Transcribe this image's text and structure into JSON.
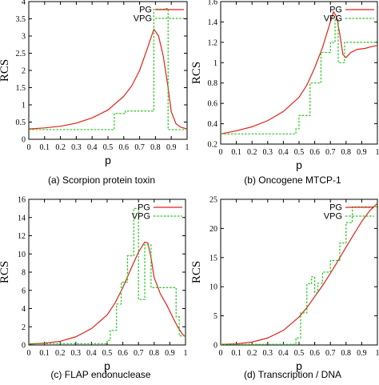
{
  "legend": {
    "pg": "PG",
    "vpg": "VPG"
  },
  "colors": {
    "pg": "#e0221b",
    "vpg": "#22c51c"
  },
  "chart_data": [
    {
      "type": "line",
      "caption": "(a) Scorpion protein toxin",
      "xlabel": "p",
      "ylabel": "RCS",
      "xlim": [
        0,
        1
      ],
      "ylim": [
        0,
        4
      ],
      "yticks": [
        "0",
        "0.5",
        "1",
        "1.5",
        "2",
        "2.5",
        "3",
        "3.5",
        "4"
      ],
      "xticks": [
        "0",
        "0.1",
        "0.2",
        "0.3",
        "0.4",
        "0.5",
        "0.6",
        "0.7",
        "0.8",
        "0.9",
        "1"
      ],
      "series": [
        {
          "name": "PG",
          "points": [
            [
              0,
              0.3
            ],
            [
              0.1,
              0.33
            ],
            [
              0.2,
              0.38
            ],
            [
              0.3,
              0.47
            ],
            [
              0.4,
              0.62
            ],
            [
              0.5,
              0.85
            ],
            [
              0.6,
              1.25
            ],
            [
              0.65,
              1.55
            ],
            [
              0.7,
              2.0
            ],
            [
              0.75,
              2.65
            ],
            [
              0.79,
              3.2
            ],
            [
              0.82,
              3.0
            ],
            [
              0.85,
              2.4
            ],
            [
              0.88,
              1.5
            ],
            [
              0.9,
              0.8
            ],
            [
              0.93,
              0.45
            ],
            [
              0.96,
              0.35
            ],
            [
              1.0,
              0.3
            ]
          ]
        },
        {
          "name": "VPG",
          "points": [
            [
              0,
              0.28
            ],
            [
              0.54,
              0.28
            ],
            [
              0.54,
              0.75
            ],
            [
              0.61,
              0.75
            ],
            [
              0.61,
              0.82
            ],
            [
              0.79,
              0.82
            ],
            [
              0.79,
              3.78
            ],
            [
              0.86,
              3.78
            ],
            [
              0.86,
              3.8
            ],
            [
              0.88,
              3.8
            ],
            [
              0.88,
              0.28
            ],
            [
              1.0,
              0.28
            ]
          ]
        }
      ]
    },
    {
      "type": "line",
      "caption": "(b) Oncogene MTCP-1",
      "xlabel": "p",
      "ylabel": "RCS",
      "xlim": [
        0,
        1
      ],
      "ylim": [
        0.2,
        1.6
      ],
      "yticks": [
        "0.2",
        "0.4",
        "0.6",
        "0.8",
        "1",
        "1.2",
        "1.4",
        "1.6"
      ],
      "xticks": [
        "0",
        "0.1",
        "0.2",
        "0.3",
        "0.4",
        "0.5",
        "0.6",
        "0.7",
        "0.8",
        "0.9",
        "1"
      ],
      "series": [
        {
          "name": "PG",
          "points": [
            [
              0,
              0.3
            ],
            [
              0.1,
              0.33
            ],
            [
              0.2,
              0.37
            ],
            [
              0.3,
              0.43
            ],
            [
              0.4,
              0.52
            ],
            [
              0.5,
              0.66
            ],
            [
              0.55,
              0.78
            ],
            [
              0.6,
              0.95
            ],
            [
              0.65,
              1.15
            ],
            [
              0.7,
              1.4
            ],
            [
              0.72,
              1.5
            ],
            [
              0.74,
              1.45
            ],
            [
              0.76,
              1.28
            ],
            [
              0.78,
              1.08
            ],
            [
              0.8,
              1.05
            ],
            [
              0.83,
              1.1
            ],
            [
              0.87,
              1.13
            ],
            [
              0.92,
              1.14
            ],
            [
              0.97,
              1.16
            ],
            [
              1.0,
              1.17
            ]
          ]
        },
        {
          "name": "VPG",
          "points": [
            [
              0,
              0.3
            ],
            [
              0.48,
              0.3
            ],
            [
              0.48,
              0.35
            ],
            [
              0.5,
              0.35
            ],
            [
              0.5,
              0.48
            ],
            [
              0.57,
              0.48
            ],
            [
              0.57,
              0.8
            ],
            [
              0.64,
              0.8
            ],
            [
              0.64,
              1.1
            ],
            [
              0.7,
              1.1
            ],
            [
              0.7,
              1.2
            ],
            [
              0.73,
              1.2
            ],
            [
              0.73,
              1.42
            ],
            [
              0.75,
              1.42
            ],
            [
              0.75,
              1.0
            ],
            [
              0.79,
              1.0
            ],
            [
              0.79,
              1.2
            ],
            [
              1.0,
              1.2
            ]
          ]
        }
      ]
    },
    {
      "type": "line",
      "caption": "(c) FLAP endonuclease",
      "xlabel": "p",
      "ylabel": "RCS",
      "xlim": [
        0,
        1
      ],
      "ylim": [
        0,
        16
      ],
      "yticks": [
        "0",
        "2",
        "4",
        "6",
        "8",
        "10",
        "12",
        "14",
        "16"
      ],
      "xticks": [
        "0",
        "0.1",
        "0.2",
        "0.3",
        "0.4",
        "0.5",
        "0.6",
        "0.7",
        "0.8",
        "0.9",
        "1"
      ],
      "series": [
        {
          "name": "PG",
          "points": [
            [
              0,
              0.1
            ],
            [
              0.1,
              0.2
            ],
            [
              0.2,
              0.4
            ],
            [
              0.3,
              0.9
            ],
            [
              0.4,
              1.8
            ],
            [
              0.5,
              3.3
            ],
            [
              0.55,
              4.6
            ],
            [
              0.6,
              6.3
            ],
            [
              0.65,
              8.3
            ],
            [
              0.7,
              10.2
            ],
            [
              0.74,
              11.3
            ],
            [
              0.76,
              11.2
            ],
            [
              0.78,
              9.6
            ],
            [
              0.8,
              7.4
            ],
            [
              0.84,
              5.6
            ],
            [
              0.88,
              4.4
            ],
            [
              0.92,
              3.0
            ],
            [
              0.95,
              2.0
            ],
            [
              0.98,
              1.2
            ],
            [
              1.0,
              0.9
            ]
          ]
        },
        {
          "name": "VPG",
          "points": [
            [
              0,
              0.15
            ],
            [
              0.5,
              0.15
            ],
            [
              0.5,
              0.5
            ],
            [
              0.52,
              0.5
            ],
            [
              0.52,
              1.6
            ],
            [
              0.56,
              1.6
            ],
            [
              0.56,
              4.5
            ],
            [
              0.59,
              4.5
            ],
            [
              0.59,
              6.9
            ],
            [
              0.63,
              6.9
            ],
            [
              0.63,
              9.8
            ],
            [
              0.67,
              9.8
            ],
            [
              0.67,
              15.0
            ],
            [
              0.7,
              15.0
            ],
            [
              0.7,
              5.0
            ],
            [
              0.74,
              5.0
            ],
            [
              0.74,
              11.0
            ],
            [
              0.78,
              11.0
            ],
            [
              0.78,
              6.3
            ],
            [
              0.94,
              6.3
            ],
            [
              0.94,
              3.1
            ],
            [
              0.96,
              3.1
            ],
            [
              0.96,
              1.0
            ],
            [
              1.0,
              1.0
            ]
          ]
        }
      ]
    },
    {
      "type": "line",
      "caption": "(d) Transcription / DNA",
      "xlabel": "p",
      "ylabel": "RCS",
      "xlim": [
        0,
        1
      ],
      "ylim": [
        0,
        25
      ],
      "yticks": [
        "0",
        "5",
        "10",
        "15",
        "20",
        "25"
      ],
      "xticks": [
        "0",
        "0.1",
        "0.2",
        "0.3",
        "0.4",
        "0.5",
        "0.6",
        "0.7",
        "0.8",
        "0.9",
        "1"
      ],
      "series": [
        {
          "name": "PG",
          "points": [
            [
              0,
              0.1
            ],
            [
              0.1,
              0.2
            ],
            [
              0.2,
              0.5
            ],
            [
              0.3,
              1.2
            ],
            [
              0.4,
              2.5
            ],
            [
              0.5,
              4.8
            ],
            [
              0.55,
              6.4
            ],
            [
              0.6,
              8.3
            ],
            [
              0.65,
              10.2
            ],
            [
              0.7,
              12.3
            ],
            [
              0.75,
              14.5
            ],
            [
              0.8,
              16.8
            ],
            [
              0.85,
              19.0
            ],
            [
              0.9,
              21.2
            ],
            [
              0.95,
              23.0
            ],
            [
              1.0,
              24.3
            ]
          ]
        },
        {
          "name": "VPG",
          "points": [
            [
              0,
              0.1
            ],
            [
              0.48,
              0.1
            ],
            [
              0.48,
              1.2
            ],
            [
              0.51,
              1.2
            ],
            [
              0.51,
              5.5
            ],
            [
              0.55,
              5.5
            ],
            [
              0.55,
              10.5
            ],
            [
              0.58,
              10.5
            ],
            [
              0.58,
              11.7
            ],
            [
              0.6,
              11.7
            ],
            [
              0.6,
              9.0
            ],
            [
              0.62,
              9.0
            ],
            [
              0.62,
              10.6
            ],
            [
              0.65,
              10.6
            ],
            [
              0.65,
              12.5
            ],
            [
              0.7,
              12.5
            ],
            [
              0.7,
              14.5
            ],
            [
              0.76,
              14.5
            ],
            [
              0.76,
              17.5
            ],
            [
              0.8,
              17.5
            ],
            [
              0.8,
              21.0
            ],
            [
              0.84,
              21.0
            ],
            [
              0.84,
              23.7
            ],
            [
              1.0,
              23.7
            ]
          ]
        }
      ]
    }
  ]
}
